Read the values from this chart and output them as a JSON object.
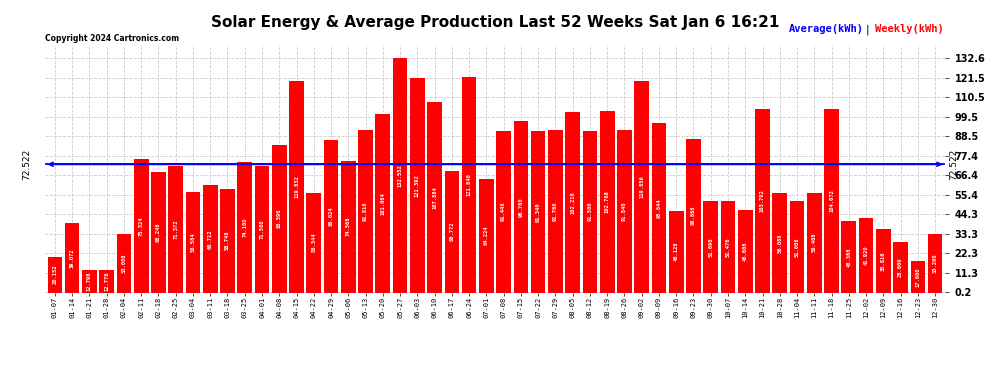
{
  "title": "Solar Energy & Average Production Last 52 Weeks Sat Jan 6 16:21",
  "copyright": "Copyright 2024 Cartronics.com",
  "average_value": 72.522,
  "bar_color": "#ff0000",
  "average_line_color": "#0000ff",
  "average_label_color": "#0000ff",
  "weekly_label_color": "#ff0000",
  "average_label": "Average(kWh)",
  "weekly_label": "Weekly(kWh)",
  "background_color": "#ffffff",
  "grid_color": "#cccccc",
  "yticks": [
    0.2,
    11.3,
    22.3,
    33.3,
    44.3,
    55.4,
    66.4,
    77.4,
    88.5,
    99.5,
    110.5,
    121.5,
    132.6
  ],
  "ymax": 140,
  "categories": [
    "01-07",
    "01-14",
    "01-21",
    "01-28",
    "02-04",
    "02-11",
    "02-18",
    "02-25",
    "03-04",
    "03-11",
    "03-18",
    "03-25",
    "04-01",
    "04-08",
    "04-15",
    "04-22",
    "04-29",
    "05-06",
    "05-13",
    "05-20",
    "05-27",
    "06-03",
    "06-10",
    "06-17",
    "06-24",
    "07-01",
    "07-08",
    "07-15",
    "07-22",
    "07-29",
    "08-05",
    "08-12",
    "08-19",
    "08-26",
    "09-02",
    "09-09",
    "09-16",
    "09-23",
    "09-30",
    "10-07",
    "10-14",
    "10-21",
    "10-28",
    "11-04",
    "11-11",
    "11-18",
    "11-25",
    "12-02",
    "12-09",
    "12-16",
    "12-23",
    "12-30"
  ],
  "values": [
    20.152,
    39.072,
    12.796,
    12.776,
    33.008,
    75.324,
    68.248,
    71.372,
    56.584,
    60.712,
    58.748,
    74.1,
    71.5,
    83.596,
    119.832,
    56.344,
    86.024,
    74.568,
    91.816,
    101.064,
    132.552,
    121.392,
    107.884,
    68.772,
    121.84,
    64.224,
    91.448,
    96.76,
    91.34,
    91.76,
    102.216,
    91.5,
    102.768,
    91.84,
    119.856,
    95.844,
    46.128,
    86.868,
    51.696,
    51.476,
    46.608,
    103.792,
    56.088,
    51.608,
    56.408,
    104.072,
    40.368,
    41.92,
    35.81,
    28.6,
    17.6,
    33.2
  ]
}
